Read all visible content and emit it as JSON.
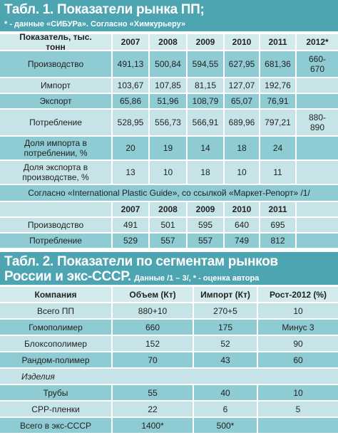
{
  "table1": {
    "title": "Табл. 1. Показатели рынка ПП;",
    "subtitle": "* - данные «СИБУРа». Согласно «Химкурьеру»",
    "columns": [
      "Показатель, тыс. тонн",
      "2007",
      "2008",
      "2009",
      "2010",
      "2011",
      "2012*"
    ],
    "rows": [
      [
        "Производство",
        "491,13",
        "500,84",
        "594,55",
        "627,95",
        "681,36",
        "660-670"
      ],
      [
        "Импорт",
        "103,67",
        "107,85",
        "81,15",
        "127,07",
        "192,76",
        null
      ],
      [
        "Экспорт",
        "65,86",
        "51,96",
        "108,79",
        "65,07",
        "76,91",
        null
      ],
      [
        "Потребление",
        "528,95",
        "556,73",
        "566,91",
        "689,96",
        "797,21",
        "880-890"
      ],
      [
        "Доля импорта в потреблении, %",
        "20",
        "19",
        "14",
        "18",
        "24",
        null
      ],
      [
        "Доля экспорта в производстве, %",
        "13",
        "10",
        "18",
        "10",
        "11",
        null
      ]
    ],
    "note": "Согласно «International Plastic Guide», со ссылкой «Маркет-Репорт» /1/",
    "columns2": [
      null,
      "2007",
      "2008",
      "2009",
      "2010",
      "2011",
      null
    ],
    "rows2": [
      [
        "Производство",
        "491",
        "501",
        "595",
        "640",
        "695",
        null
      ],
      [
        "Потребление",
        "529",
        "557",
        "557",
        "749",
        "812",
        null
      ]
    ]
  },
  "table2": {
    "title_lines": [
      "Табл. 2. Показатели по сегментам рынков",
      "России и экс-СССР."
    ],
    "subtitle": "Данные /1 – 3/, * - оценка автора",
    "columns": [
      "Компания",
      "Объем (Кт)",
      "Импорт (Кт)",
      "Рост-2012 (%)"
    ],
    "rows": [
      [
        "Всего ПП",
        "880+10",
        "270+5",
        "10"
      ],
      [
        "Гомополимер",
        "660",
        "175",
        "Минус 3"
      ],
      [
        "Блоксополимер",
        "152",
        "52",
        "90"
      ],
      [
        "Рандом-полимер",
        "70",
        "43",
        "60"
      ]
    ],
    "section": "Изделия",
    "rows2": [
      [
        "Трубы",
        "55",
        "40",
        "10"
      ],
      [
        "CPP-пленки",
        "22",
        "6",
        "5"
      ],
      [
        "Всего в экс-СССР",
        "1400*",
        "500*",
        null
      ]
    ]
  }
}
